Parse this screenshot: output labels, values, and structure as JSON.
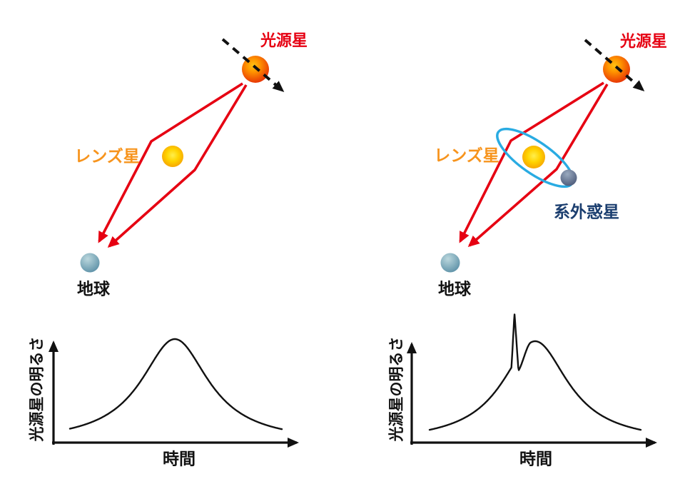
{
  "diagram_left": {
    "source_star_label": "光源星",
    "lens_star_label": "レンズ星",
    "earth_label": "地球"
  },
  "diagram_right": {
    "source_star_label": "光源星",
    "lens_star_label": "レンズ星",
    "exoplanet_label": "系外惑星",
    "earth_label": "地球"
  },
  "colors": {
    "label_red": "#E60012",
    "label_orange": "#F7941D",
    "label_navy": "#1B3E6F",
    "light_path_red": "#E60012",
    "orbit_blue": "#29ABE2",
    "axis_black": "#111111"
  },
  "chart_data": [
    {
      "type": "line",
      "xlabel": "時間",
      "ylabel": "光源星の明るさ",
      "description": "smooth single-peak microlensing light curve (lens star only)",
      "curve": {
        "peak_x": 0.495,
        "peak_width": 0.195,
        "peak_height": 1.0
      }
    },
    {
      "type": "line",
      "xlabel": "時間",
      "ylabel": "光源星の明るさ",
      "description": "microlensing light curve with sharp planetary spike just before the main peak",
      "curve": {
        "peak_x": 0.5,
        "peak_width": 0.19,
        "peak_height": 1.0,
        "spike": {
          "rise_start": 0.388,
          "tip_x": 0.402,
          "tip_height": 1.28,
          "notch_x": 0.421,
          "notch_height": 0.71,
          "blend_end": 0.48
        }
      }
    }
  ]
}
